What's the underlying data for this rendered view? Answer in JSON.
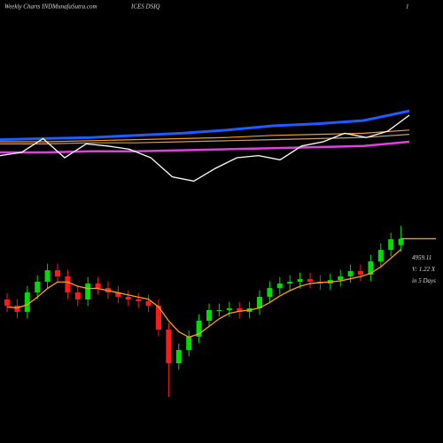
{
  "header": {
    "title": "Weekly Charts INDMunafaSutra.com",
    "symbol": "ICES DSIQ",
    "page": "1"
  },
  "chart_data": [
    {
      "type": "line",
      "ylim": [
        0,
        100
      ],
      "series": [
        {
          "color": "#1e5cff",
          "width": 3,
          "values": [
            52,
            53,
            54,
            56,
            58,
            61,
            65,
            67,
            70,
            79
          ]
        },
        {
          "color": "#ff9c1a",
          "width": 1.2,
          "values": [
            50,
            50,
            51,
            52,
            53,
            54,
            56,
            57,
            58,
            61
          ]
        },
        {
          "color": "#c8a070",
          "width": 1.2,
          "values": [
            48,
            48,
            49,
            49,
            50,
            51,
            52,
            53,
            54,
            57
          ]
        },
        {
          "color": "#e040e0",
          "width": 2.5,
          "values": [
            40,
            40,
            41,
            41,
            42,
            43,
            44,
            45,
            46,
            50
          ]
        },
        {
          "color": "#ffffff",
          "width": 1.3,
          "values": [
            37,
            40,
            53,
            35,
            48,
            46,
            43,
            35,
            17,
            13,
            25,
            35,
            37,
            33,
            46,
            50,
            58,
            54,
            60,
            75
          ]
        }
      ]
    },
    {
      "type": "candlestick",
      "ylim": [
        3400,
        5200
      ],
      "up_color": "#00dd00",
      "down_color": "#ff1a1a",
      "open": [
        4398,
        4341,
        4283,
        4463,
        4562,
        4668,
        4611,
        4463,
        4398,
        4545,
        4504,
        4463,
        4423,
        4398,
        4382,
        4341,
        4120,
        3809,
        3932,
        4054,
        4202,
        4300,
        4300,
        4316,
        4283,
        4316,
        4423,
        4504,
        4545,
        4562,
        4586,
        4562,
        4545,
        4578,
        4611,
        4660,
        4627,
        4750,
        4856,
        4900
      ],
      "high": [
        4458,
        4401,
        4523,
        4622,
        4728,
        4728,
        4671,
        4523,
        4605,
        4605,
        4564,
        4523,
        4483,
        4458,
        4442,
        4401,
        4180,
        3992,
        4114,
        4262,
        4360,
        4360,
        4376,
        4376,
        4376,
        4483,
        4564,
        4605,
        4622,
        4646,
        4646,
        4622,
        4638,
        4671,
        4720,
        4720,
        4810,
        4916,
        5014,
        5080
      ],
      "low": [
        4281,
        4223,
        4223,
        4403,
        4502,
        4551,
        4403,
        4338,
        4338,
        4444,
        4403,
        4363,
        4338,
        4322,
        4281,
        4060,
        3500,
        3749,
        3872,
        3994,
        4142,
        4240,
        4240,
        4223,
        4223,
        4256,
        4363,
        4444,
        4485,
        4502,
        4502,
        4485,
        4485,
        4518,
        4551,
        4567,
        4567,
        4690,
        4796,
        4840
      ],
      "close": [
        4341,
        4283,
        4463,
        4562,
        4668,
        4611,
        4463,
        4398,
        4545,
        4504,
        4463,
        4423,
        4398,
        4382,
        4341,
        4120,
        3809,
        3932,
        4054,
        4202,
        4300,
        4300,
        4316,
        4283,
        4316,
        4423,
        4504,
        4545,
        4562,
        4586,
        4562,
        4545,
        4578,
        4611,
        4660,
        4627,
        4750,
        4856,
        4954,
        4959.11
      ],
      "ma": {
        "color": "#ff9c1a",
        "values": [
          4330,
          4320,
          4350,
          4420,
          4500,
          4560,
          4560,
          4520,
          4500,
          4500,
          4480,
          4460,
          4440,
          4420,
          4400,
          4330,
          4200,
          4100,
          4050,
          4080,
          4150,
          4220,
          4270,
          4290,
          4300,
          4320,
          4370,
          4430,
          4480,
          4520,
          4545,
          4555,
          4560,
          4570,
          4590,
          4610,
          4640,
          4700,
          4780,
          4860
        ]
      },
      "annotations": [
        "V: 1.22 X",
        "in 5 Days"
      ]
    }
  ]
}
